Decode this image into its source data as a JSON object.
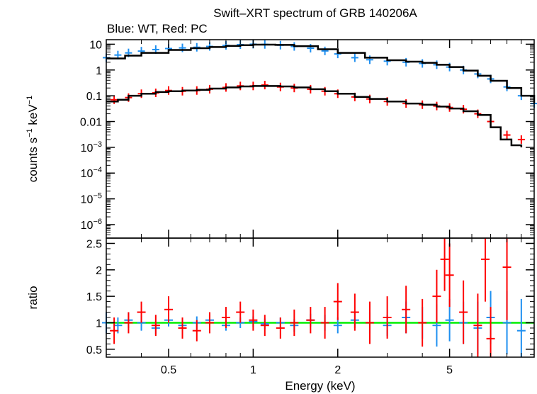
{
  "chart_data": {
    "type": "scatter",
    "title": "Swift–XRT spectrum of GRB 140206A",
    "subtitle": "Blue: WT, Red: PC",
    "xlabel": "Energy (keV)",
    "x_scale": "log",
    "xlim": [
      0.3,
      10
    ],
    "x_ticks": [
      {
        "value": 0.5,
        "label": "0.5"
      },
      {
        "value": 1,
        "label": "1"
      },
      {
        "value": 2,
        "label": "2"
      },
      {
        "value": 5,
        "label": "5"
      }
    ],
    "top_panel": {
      "ylabel_main": "counts s",
      "ylabel_sup1": "−1",
      "ylabel_mid": " keV",
      "ylabel_sup2": "−1",
      "y_scale": "log",
      "ylim": [
        3e-07,
        15
      ],
      "y_ticks": [
        {
          "value": 10,
          "label": "10"
        },
        {
          "value": 1,
          "label": "1"
        },
        {
          "value": 0.1,
          "label": "0.1"
        },
        {
          "value": 0.01,
          "label": "0.01"
        },
        {
          "value": 0.001,
          "base": "10",
          "exp": "−3"
        },
        {
          "value": 0.0001,
          "base": "10",
          "exp": "−4"
        },
        {
          "value": 1e-05,
          "base": "10",
          "exp": "−5"
        },
        {
          "value": 1e-06,
          "base": "10",
          "exp": "−6"
        }
      ],
      "series": [
        {
          "color": "#1e8ff0",
          "x": [
            0.3,
            0.33,
            0.36,
            0.4,
            0.45,
            0.5,
            0.56,
            0.63,
            0.7,
            0.8,
            0.9,
            1.0,
            1.1,
            1.25,
            1.4,
            1.6,
            1.8,
            2.0,
            2.3,
            2.6,
            3.0,
            3.5,
            4.0,
            4.5,
            5.0,
            5.6,
            6.3,
            7.0,
            8.0,
            9.0,
            10.0
          ],
          "y": [
            3.0,
            3.8,
            4.6,
            5.4,
            6.2,
            6.8,
            7.2,
            7.6,
            8.2,
            9.0,
            9.6,
            10.0,
            9.8,
            9.2,
            8.2,
            7.0,
            5.5,
            4.2,
            3.0,
            2.5,
            2.2,
            2.0,
            1.8,
            1.6,
            1.3,
            1.0,
            0.7,
            0.45,
            0.22,
            0.1,
            0.05
          ]
        },
        {
          "color": "#ff0000",
          "x": [
            0.32,
            0.36,
            0.4,
            0.45,
            0.5,
            0.56,
            0.63,
            0.7,
            0.8,
            0.9,
            1.0,
            1.1,
            1.25,
            1.4,
            1.6,
            1.8,
            2.0,
            2.3,
            2.6,
            3.0,
            3.5,
            4.0,
            4.5,
            5.0,
            5.6,
            6.3,
            7.0,
            8.0,
            9.0
          ],
          "y": [
            0.07,
            0.085,
            0.12,
            0.13,
            0.16,
            0.15,
            0.16,
            0.18,
            0.21,
            0.24,
            0.24,
            0.26,
            0.22,
            0.2,
            0.18,
            0.15,
            0.12,
            0.09,
            0.075,
            0.06,
            0.05,
            0.045,
            0.04,
            0.035,
            0.03,
            0.02,
            0.01,
            0.003,
            0.002
          ]
        }
      ],
      "models": [
        {
          "color": "#000000",
          "x": [
            0.3,
            0.35,
            0.4,
            0.5,
            0.6,
            0.7,
            0.8,
            0.9,
            1.0,
            1.2,
            1.4,
            1.7,
            2.0,
            2.5,
            3.0,
            3.5,
            4.0,
            4.5,
            5.0,
            5.6,
            6.3,
            7.0,
            8.0,
            9.0,
            10.0
          ],
          "y": [
            2.8,
            3.6,
            4.6,
            6.0,
            7.0,
            7.8,
            8.6,
            9.2,
            9.6,
            9.4,
            8.4,
            6.4,
            4.6,
            3.0,
            2.4,
            2.1,
            1.9,
            1.6,
            1.3,
            0.95,
            0.6,
            0.38,
            0.2,
            0.1,
            0.05
          ]
        },
        {
          "color": "#000000",
          "x": [
            0.3,
            0.33,
            0.36,
            0.4,
            0.45,
            0.5,
            0.56,
            0.63,
            0.7,
            0.8,
            0.9,
            1.0,
            1.1,
            1.25,
            1.4,
            1.6,
            1.8,
            2.0,
            2.3,
            2.6,
            3.0,
            3.5,
            4.0,
            4.5,
            5.0,
            5.6,
            6.3,
            7.0,
            7.6,
            8.3,
            9.0
          ],
          "y": [
            0.06,
            0.07,
            0.1,
            0.12,
            0.14,
            0.15,
            0.16,
            0.17,
            0.19,
            0.21,
            0.23,
            0.24,
            0.24,
            0.23,
            0.21,
            0.18,
            0.15,
            0.12,
            0.09,
            0.075,
            0.06,
            0.05,
            0.045,
            0.038,
            0.032,
            0.025,
            0.018,
            0.006,
            0.002,
            0.0012,
            0.001
          ]
        }
      ]
    },
    "bottom_panel": {
      "ylabel": "ratio",
      "y_scale": "linear",
      "ylim": [
        0.35,
        2.6
      ],
      "y_ticks": [
        {
          "value": 0.5,
          "label": "0.5"
        },
        {
          "value": 1,
          "label": "1"
        },
        {
          "value": 1.5,
          "label": "1.5"
        },
        {
          "value": 2,
          "label": "2"
        },
        {
          "value": 2.5,
          "label": "2.5"
        }
      ],
      "reference_line": {
        "y": 1,
        "color": "#00ee00"
      },
      "series": [
        {
          "color": "#1e8ff0",
          "x": [
            0.3,
            0.33,
            0.36,
            0.4,
            0.45,
            0.5,
            0.56,
            0.63,
            0.7,
            0.8,
            0.9,
            1.0,
            1.1,
            1.25,
            1.4,
            1.6,
            1.8,
            2.0,
            2.3,
            2.6,
            3.0,
            3.5,
            4.0,
            4.5,
            5.0,
            5.6,
            6.3,
            7.0,
            8.0,
            9.0
          ],
          "y": [
            1.0,
            0.95,
            1.05,
            1.0,
            0.9,
            1.05,
            0.95,
            1.0,
            1.05,
            0.95,
            1.0,
            1.02,
            0.98,
            1.0,
            0.95,
            1.05,
            1.0,
            0.95,
            1.05,
            1.0,
            0.95,
            1.1,
            1.0,
            0.95,
            1.05,
            1.0,
            0.9,
            1.1,
            1.0,
            0.85
          ],
          "yerr": [
            0.2,
            0.15,
            0.15,
            0.15,
            0.12,
            0.12,
            0.12,
            0.12,
            0.1,
            0.1,
            0.1,
            0.1,
            0.1,
            0.1,
            0.12,
            0.12,
            0.15,
            0.15,
            0.15,
            0.2,
            0.2,
            0.3,
            0.3,
            0.4,
            0.4,
            0.4,
            0.5,
            0.5,
            0.6,
            0.6
          ]
        },
        {
          "color": "#ff0000",
          "x": [
            0.32,
            0.36,
            0.4,
            0.45,
            0.5,
            0.56,
            0.63,
            0.7,
            0.8,
            0.9,
            1.0,
            1.1,
            1.25,
            1.4,
            1.6,
            1.8,
            2.0,
            2.3,
            2.6,
            3.0,
            3.5,
            4.0,
            4.5,
            4.8,
            5.0,
            5.6,
            6.3,
            6.7,
            7.0,
            8.0
          ],
          "y": [
            0.85,
            1.0,
            1.2,
            0.95,
            1.25,
            0.9,
            0.85,
            1.0,
            1.1,
            1.2,
            1.05,
            0.95,
            0.9,
            1.0,
            1.05,
            1.0,
            1.4,
            1.2,
            1.0,
            1.1,
            1.25,
            1.0,
            1.5,
            2.2,
            1.9,
            1.2,
            0.95,
            2.2,
            0.7,
            2.05
          ],
          "yerr": [
            0.25,
            0.2,
            0.2,
            0.2,
            0.25,
            0.2,
            0.2,
            0.2,
            0.2,
            0.2,
            0.2,
            0.2,
            0.2,
            0.25,
            0.25,
            0.3,
            0.35,
            0.35,
            0.4,
            0.4,
            0.45,
            0.45,
            0.5,
            0.6,
            0.6,
            0.6,
            0.6,
            0.8,
            0.6,
            1.0
          ]
        }
      ]
    }
  }
}
